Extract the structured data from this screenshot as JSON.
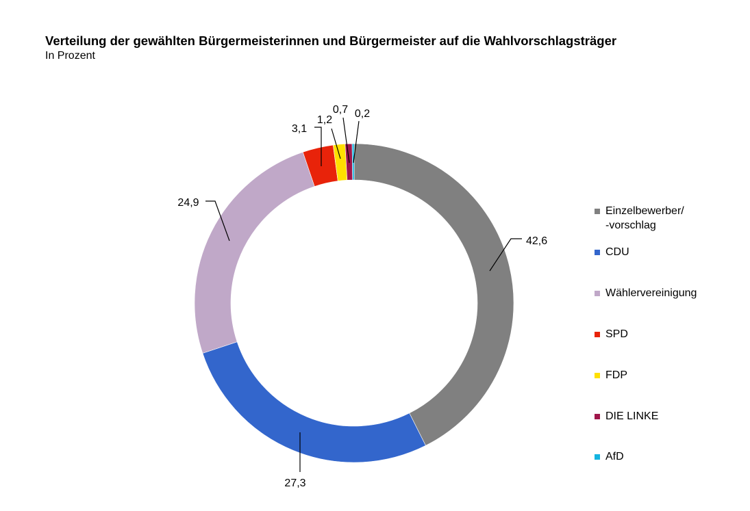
{
  "header": {
    "title": "Verteilung der gewählten Bürgermeisterinnen und Bürgermeister auf die Wahlvorschlagsträger",
    "subtitle": "In Prozent"
  },
  "chart_data": {
    "type": "pie",
    "variant": "donut",
    "title": "Verteilung der gewählten Bürgermeisterinnen und Bürgermeister auf die Wahlvorschlagsträger",
    "subtitle": "In Prozent",
    "legend_position": "right",
    "slices": [
      {
        "name": "Einzelbewerber/\n-vorschlag",
        "value": 42.6,
        "label": "42,6",
        "color": "#808080"
      },
      {
        "name": "CDU",
        "value": 27.3,
        "label": "27,3",
        "color": "#3366cc"
      },
      {
        "name": "Wählervereinigung",
        "value": 24.9,
        "label": "24,9",
        "color": "#c0a8c8"
      },
      {
        "name": "SPD",
        "value": 3.1,
        "label": "3,1",
        "color": "#e8230a"
      },
      {
        "name": "FDP",
        "value": 1.2,
        "label": "1,2",
        "color": "#ffe000"
      },
      {
        "name": "DIE LINKE",
        "value": 0.7,
        "label": "0,7",
        "color": "#a0164a"
      },
      {
        "name": "AfD",
        "value": 0.2,
        "label": "0,2",
        "color": "#14b4e0"
      }
    ]
  }
}
